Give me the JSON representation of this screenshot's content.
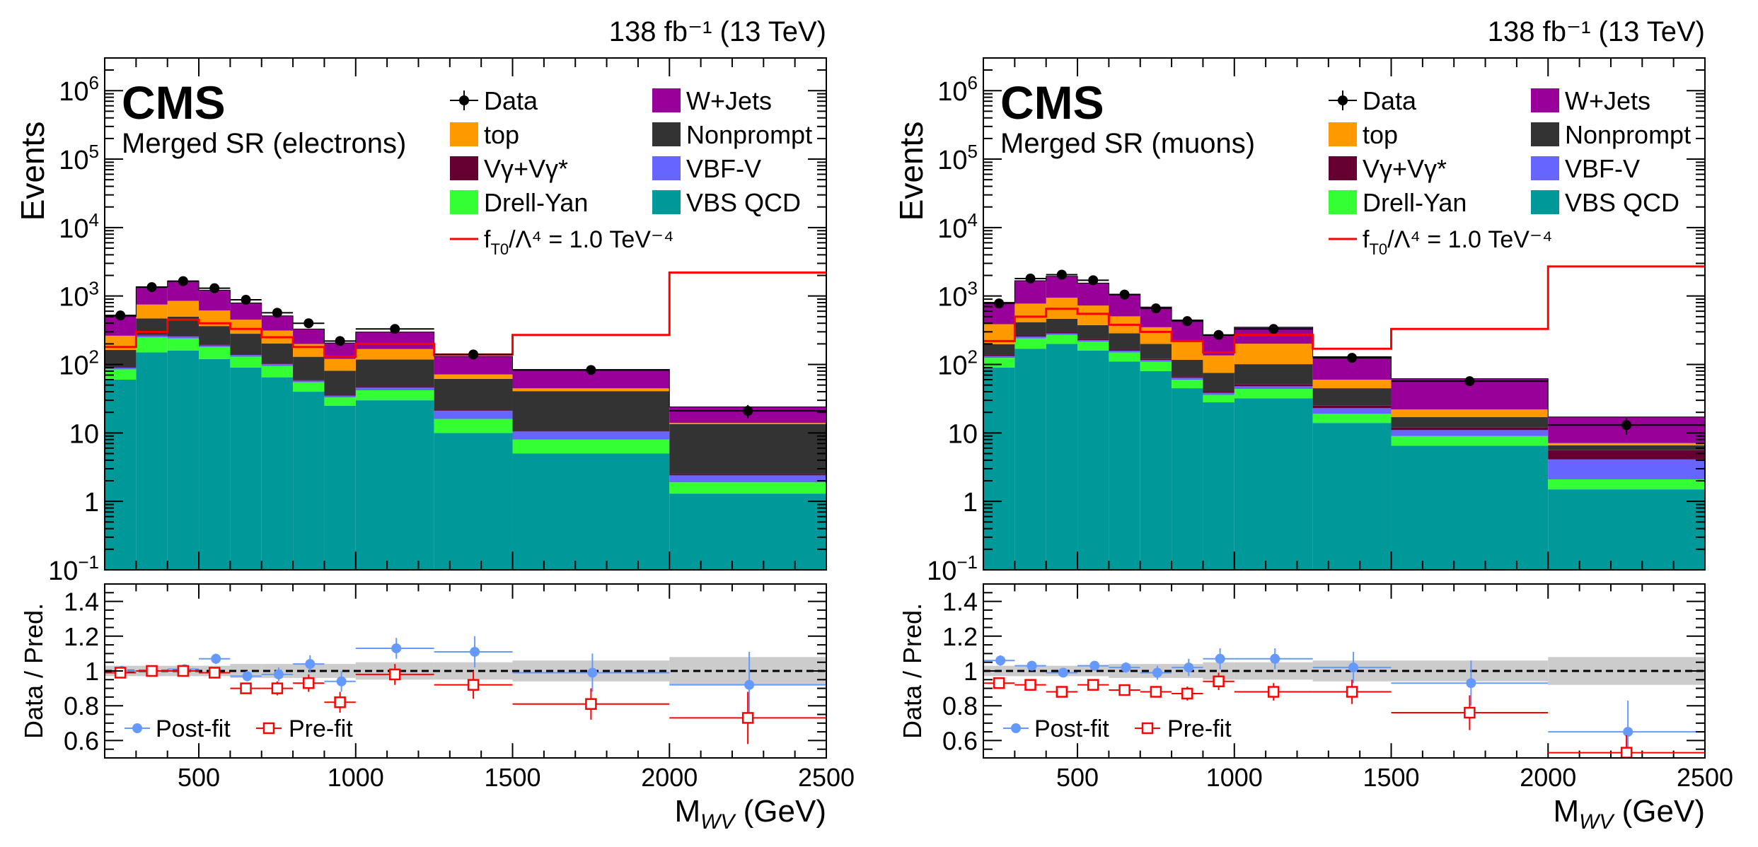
{
  "chart_data": [
    {
      "type": "stacked-histogram-with-ratio",
      "lumi_label": "138 fb⁻¹ (13 TeV)",
      "experiment": "CMS",
      "region": "Merged SR (electrons)",
      "xlabel": "M",
      "xlabel_sub": "WV",
      "xlabel_unit": " (GeV)",
      "ylabel": "Events",
      "ratio_ylabel": "Data / Pred.",
      "xlim": [
        200,
        2500
      ],
      "ylim_log": [
        0.1,
        3000000
      ],
      "ratio_ylim": [
        0.5,
        1.5
      ],
      "x_ticks": [
        "500",
        "1000",
        "1500",
        "2000",
        "2500"
      ],
      "y_ticks": [
        {
          "base": "10",
          "exp": "−1",
          "value": 0.1
        },
        {
          "base": "1",
          "exp": "",
          "value": 1
        },
        {
          "base": "10",
          "exp": "",
          "value": 10
        },
        {
          "base": "10",
          "exp": "2",
          "value": 100
        },
        {
          "base": "10",
          "exp": "3",
          "value": 1000
        },
        {
          "base": "10",
          "exp": "4",
          "value": 10000
        },
        {
          "base": "10",
          "exp": "5",
          "value": 100000
        },
        {
          "base": "10",
          "exp": "6",
          "value": 1000000
        }
      ],
      "ratio_ticks": [
        "0.6",
        "0.8",
        "1",
        "1.2",
        "1.4"
      ],
      "bin_edges": [
        200,
        300,
        400,
        500,
        600,
        700,
        800,
        900,
        1000,
        1250,
        1500,
        2000,
        2500
      ],
      "legend": {
        "data": "Data",
        "signal": "f",
        "signal_sub": "T0",
        "signal_rest": "/Λ⁴ = 1.0 TeV⁻⁴"
      },
      "series": [
        {
          "name": "VBS QCD",
          "color": "#009999",
          "values": [
            60,
            150,
            160,
            120,
            90,
            65,
            40,
            25,
            30,
            10,
            5,
            1.3
          ]
        },
        {
          "name": "Drell-Yan",
          "color": "#33ff33",
          "values": [
            25,
            100,
            80,
            60,
            40,
            30,
            15,
            8,
            12,
            6,
            3,
            0.6
          ]
        },
        {
          "name": "VBF-V",
          "color": "#6666ff",
          "values": [
            5,
            15,
            15,
            10,
            8,
            6,
            3,
            2,
            4,
            5,
            2.5,
            0.5
          ]
        },
        {
          "name": "Vγ+Vγ*",
          "color": "#660033",
          "values": [
            3,
            5,
            5,
            4,
            3,
            2,
            1.5,
            1,
            2,
            0.5,
            0.3,
            0.1
          ]
        },
        {
          "name": "Nonprompt",
          "color": "#333333",
          "values": [
            70,
            200,
            240,
            170,
            140,
            100,
            70,
            45,
            70,
            40,
            30,
            11
          ]
        },
        {
          "name": "top",
          "color": "#ff9900",
          "values": [
            100,
            280,
            350,
            250,
            170,
            110,
            70,
            40,
            50,
            10,
            4,
            0.5
          ]
        },
        {
          "name": "W+Jets",
          "color": "#990099",
          "values": [
            240,
            620,
            800,
            600,
            340,
            200,
            130,
            85,
            130,
            60,
            40,
            10
          ]
        }
      ],
      "data_points": {
        "x": [
          250,
          350,
          450,
          550,
          650,
          750,
          850,
          950,
          1125,
          1375,
          1750,
          2250
        ],
        "y": [
          520,
          1350,
          1650,
          1300,
          880,
          570,
          400,
          220,
          330,
          140,
          83,
          21
        ]
      },
      "signal_line": [
        180,
        300,
        450,
        400,
        330,
        250,
        180,
        130,
        200,
        140,
        270,
        2200
      ],
      "ratio": {
        "post_fit": [
          1.0,
          1.0,
          1.01,
          1.07,
          0.97,
          0.98,
          1.04,
          0.94,
          1.13,
          1.11,
          0.99,
          0.92
        ],
        "post_err": [
          0.03,
          0.02,
          0.02,
          0.03,
          0.03,
          0.04,
          0.05,
          0.06,
          0.06,
          0.09,
          0.11,
          0.19
        ],
        "pre_fit": [
          0.99,
          1.0,
          1.0,
          0.99,
          0.9,
          0.9,
          0.93,
          0.82,
          0.98,
          0.92,
          0.81,
          0.73
        ],
        "pre_err": [
          0.03,
          0.02,
          0.02,
          0.03,
          0.03,
          0.04,
          0.05,
          0.06,
          0.06,
          0.08,
          0.09,
          0.15
        ],
        "band_half_width": [
          0.03,
          0.03,
          0.03,
          0.03,
          0.04,
          0.04,
          0.04,
          0.04,
          0.05,
          0.05,
          0.06,
          0.08
        ],
        "legend_post": "Post-fit",
        "legend_pre": "Pre-fit"
      }
    },
    {
      "type": "stacked-histogram-with-ratio",
      "lumi_label": "138 fb⁻¹ (13 TeV)",
      "experiment": "CMS",
      "region": "Merged SR (muons)",
      "xlabel": "M",
      "xlabel_sub": "WV",
      "xlabel_unit": " (GeV)",
      "ylabel": "Events",
      "ratio_ylabel": "Data / Pred.",
      "xlim": [
        200,
        2500
      ],
      "ylim_log": [
        0.1,
        3000000
      ],
      "ratio_ylim": [
        0.5,
        1.5
      ],
      "x_ticks": [
        "500",
        "1000",
        "1500",
        "2000",
        "2500"
      ],
      "y_ticks": [
        {
          "base": "10",
          "exp": "−1",
          "value": 0.1
        },
        {
          "base": "1",
          "exp": "",
          "value": 1
        },
        {
          "base": "10",
          "exp": "",
          "value": 10
        },
        {
          "base": "10",
          "exp": "2",
          "value": 100
        },
        {
          "base": "10",
          "exp": "3",
          "value": 1000
        },
        {
          "base": "10",
          "exp": "4",
          "value": 10000
        },
        {
          "base": "10",
          "exp": "5",
          "value": 100000
        },
        {
          "base": "10",
          "exp": "6",
          "value": 1000000
        }
      ],
      "ratio_ticks": [
        "0.6",
        "0.8",
        "1",
        "1.2",
        "1.4"
      ],
      "bin_edges": [
        200,
        300,
        400,
        500,
        600,
        700,
        800,
        900,
        1000,
        1250,
        1500,
        2000,
        2500
      ],
      "legend": {
        "data": "Data",
        "signal": "f",
        "signal_sub": "T0",
        "signal_rest": "/Λ⁴ = 1.0 TeV⁻⁴"
      },
      "series": [
        {
          "name": "VBS QCD",
          "color": "#009999",
          "values": [
            90,
            170,
            200,
            160,
            110,
            80,
            45,
            28,
            32,
            14,
            6.5,
            1.5
          ]
        },
        {
          "name": "Drell-Yan",
          "color": "#33ff33",
          "values": [
            35,
            70,
            70,
            55,
            40,
            30,
            15,
            8,
            12,
            5,
            2.5,
            0.6
          ]
        },
        {
          "name": "VBF-V",
          "color": "#6666ff",
          "values": [
            8,
            15,
            15,
            12,
            9,
            6,
            4,
            2.5,
            4,
            4,
            2,
            2
          ]
        },
        {
          "name": "Vγ+Vγ*",
          "color": "#660033",
          "values": [
            5,
            10,
            10,
            8,
            6,
            4,
            3,
            2,
            3,
            2,
            1,
            1.5
          ]
        },
        {
          "name": "Nonprompt",
          "color": "#333333",
          "values": [
            60,
            150,
            170,
            140,
            120,
            80,
            50,
            35,
            50,
            20,
            5,
            1
          ]
        },
        {
          "name": "top",
          "color": "#ff9900",
          "values": [
            190,
            360,
            480,
            350,
            220,
            150,
            100,
            60,
            100,
            15,
            5,
            0.5
          ]
        },
        {
          "name": "W+Jets",
          "color": "#990099",
          "values": [
            420,
            900,
            1000,
            820,
            560,
            340,
            230,
            130,
            150,
            70,
            40,
            10
          ]
        }
      ],
      "data_points": {
        "x": [
          250,
          350,
          450,
          550,
          650,
          750,
          850,
          950,
          1125,
          1375,
          1750,
          2250
        ],
        "y": [
          780,
          1800,
          2050,
          1700,
          1050,
          660,
          430,
          270,
          330,
          125,
          57,
          13
        ]
      },
      "signal_line": [
        220,
        500,
        650,
        550,
        380,
        300,
        220,
        150,
        270,
        170,
        330,
        2700
      ],
      "ratio": {
        "post_fit": [
          1.06,
          1.03,
          0.99,
          1.03,
          1.02,
          0.99,
          1.02,
          1.07,
          1.07,
          1.02,
          0.93,
          0.65
        ],
        "post_err": [
          0.03,
          0.02,
          0.02,
          0.02,
          0.03,
          0.04,
          0.05,
          0.06,
          0.06,
          0.09,
          0.13,
          0.18
        ],
        "pre_fit": [
          0.93,
          0.92,
          0.88,
          0.92,
          0.89,
          0.88,
          0.87,
          0.94,
          0.88,
          0.88,
          0.76,
          0.53
        ],
        "pre_err": [
          0.03,
          0.02,
          0.02,
          0.02,
          0.03,
          0.03,
          0.04,
          0.05,
          0.05,
          0.07,
          0.1,
          0.1
        ],
        "band_half_width": [
          0.03,
          0.03,
          0.03,
          0.03,
          0.04,
          0.04,
          0.04,
          0.05,
          0.05,
          0.06,
          0.06,
          0.08
        ],
        "legend_post": "Post-fit",
        "legend_pre": "Pre-fit"
      }
    }
  ]
}
